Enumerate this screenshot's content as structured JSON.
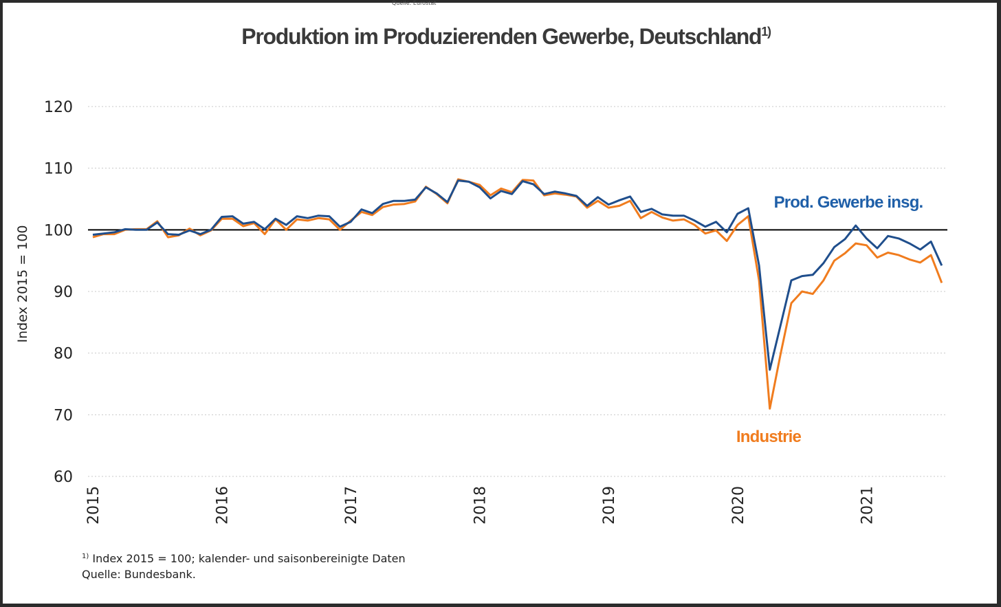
{
  "top_note": "Quelle: Eurostat",
  "chart_data": {
    "type": "line",
    "title": "Produktion im Produzierenden Gewerbe, Deutschland",
    "title_superscript": "1)",
    "ylabel": "Index 2015 = 100",
    "ylim": [
      60,
      120
    ],
    "yticks": [
      "60",
      "70",
      "80",
      "90",
      "100",
      "110",
      "120"
    ],
    "yticks_values": [
      60,
      70,
      80,
      90,
      100,
      110,
      120
    ],
    "reference_line": 100,
    "xticks": [
      "2015",
      "2016",
      "2017",
      "2018",
      "2019",
      "2020",
      "2021"
    ],
    "x_start": "2015-01",
    "grid": true,
    "series": [
      {
        "name": "Prod. Gewerbe insg.",
        "color": "#1f4e8c",
        "label_color": "#1f5fa8",
        "values": [
          99.2,
          99.4,
          99.6,
          100.1,
          100.0,
          100.0,
          101.2,
          99.3,
          99.2,
          99.9,
          99.3,
          100.0,
          102.1,
          102.2,
          101.0,
          101.3,
          100.1,
          101.8,
          100.8,
          102.2,
          101.9,
          102.3,
          102.2,
          100.5,
          101.3,
          103.3,
          102.7,
          104.2,
          104.7,
          104.7,
          104.9,
          106.9,
          105.9,
          104.5,
          108.0,
          107.8,
          106.9,
          105.1,
          106.3,
          105.8,
          107.9,
          107.4,
          105.8,
          106.2,
          105.9,
          105.5,
          103.9,
          105.3,
          104.1,
          104.8,
          105.4,
          102.9,
          103.4,
          102.5,
          102.3,
          102.3,
          101.5,
          100.5,
          101.3,
          99.6,
          102.6,
          103.5,
          94.2,
          77.3,
          84.5,
          91.8,
          92.5,
          92.7,
          94.6,
          97.2,
          98.5,
          100.7,
          98.6,
          97.0,
          99.0,
          98.6,
          97.8,
          96.8,
          98.1,
          94.2
        ],
        "end_label": "Prod. Gewerbe insg."
      },
      {
        "name": "Industrie",
        "color": "#f07c1e",
        "label_color": "#f07c1e",
        "values": [
          98.8,
          99.3,
          99.3,
          100.0,
          100.1,
          100.1,
          101.4,
          98.8,
          99.1,
          100.2,
          99.1,
          99.9,
          101.8,
          101.8,
          100.6,
          101.1,
          99.3,
          101.7,
          100.0,
          101.7,
          101.5,
          101.9,
          101.7,
          100.0,
          101.5,
          102.9,
          102.4,
          103.7,
          104.1,
          104.2,
          104.6,
          107.0,
          105.8,
          104.3,
          108.2,
          107.8,
          107.3,
          105.6,
          106.7,
          106.1,
          108.1,
          108.0,
          105.6,
          105.9,
          105.7,
          105.4,
          103.6,
          104.7,
          103.6,
          103.9,
          104.7,
          101.9,
          102.9,
          102.0,
          101.5,
          101.7,
          100.8,
          99.4,
          99.9,
          98.2,
          100.8,
          102.2,
          91.8,
          71.0,
          79.8,
          88.1,
          90.0,
          89.6,
          91.8,
          95.0,
          96.2,
          97.8,
          97.5,
          95.5,
          96.3,
          95.9,
          95.2,
          94.7,
          95.9,
          91.4
        ],
        "end_label": "Industrie"
      }
    ]
  },
  "footnote": {
    "superscript": "1)",
    "line1": " Index 2015 = 100; kalender- und saisonbereinigte Daten",
    "line2": "Quelle: Bundesbank."
  }
}
